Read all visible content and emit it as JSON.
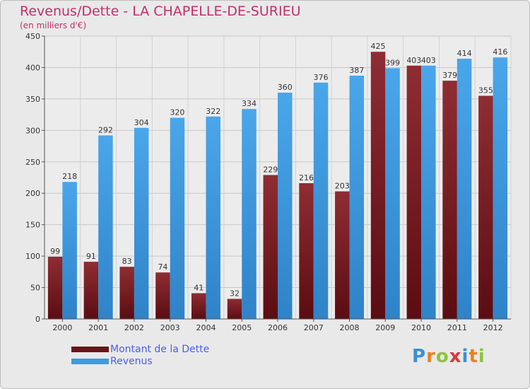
{
  "header": {
    "title": "Revenus/Dette - LA CHAPELLE-DE-SURIEU",
    "subtitle": "(en milliers d'€)"
  },
  "logo": {
    "text": "Proxiti",
    "letters": [
      "P",
      "r",
      "o",
      "x",
      "i",
      "t",
      "i"
    ],
    "colors": [
      "#3a8fd8",
      "#e8831c",
      "#8cc43c",
      "#d83a3a",
      "#3a8fd8",
      "#e8831c",
      "#8cc43c"
    ]
  },
  "chart_data": {
    "type": "bar",
    "categories": [
      "2000",
      "2001",
      "2002",
      "2003",
      "2004",
      "2005",
      "2006",
      "2007",
      "2008",
      "2009",
      "2010",
      "2011",
      "2012"
    ],
    "series": [
      {
        "name": "Montant de la Dette",
        "values": [
          99,
          91,
          83,
          74,
          41,
          32,
          229,
          216,
          203,
          425,
          403,
          379,
          355
        ],
        "color": "#8b2a2e"
      },
      {
        "name": "Revenus",
        "values": [
          218,
          292,
          304,
          320,
          322,
          334,
          360,
          376,
          387,
          399,
          403,
          414,
          416
        ],
        "color": "#3b9be0"
      }
    ],
    "title": "Revenus/Dette - LA CHAPELLE-DE-SURIEU",
    "ylabel": "(en milliers d'€)",
    "ylim": [
      0,
      450
    ],
    "yticks": [
      0,
      50,
      100,
      150,
      200,
      250,
      300,
      350,
      400,
      450
    ],
    "grid": true,
    "legend_position": "bottom-left"
  }
}
